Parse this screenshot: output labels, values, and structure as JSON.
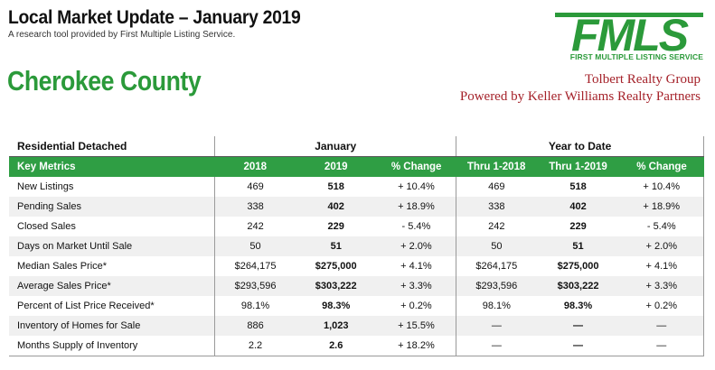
{
  "header": {
    "title": "Local Market Update – January 2019",
    "subtitle": "A research tool provided by First Multiple Listing Service.",
    "county": "Cherokee County"
  },
  "logo": {
    "wordmark": "FMLS",
    "caption": "FIRST MULTIPLE LISTING SERVICE",
    "color": "#2b9a3a"
  },
  "agent": {
    "line1": "Tolbert Realty Group",
    "line2": "Powered by Keller Williams Realty Partners",
    "color": "#a5222a"
  },
  "table": {
    "section_label": "Residential Detached",
    "group_month": "January",
    "group_ytd": "Year to Date",
    "header_color": "#2f9e44",
    "columns": [
      "Key Metrics",
      "2018",
      "2019",
      "% Change",
      "Thru 1-2018",
      "Thru 1-2019",
      "% Change"
    ],
    "rows": [
      {
        "metric": "New Listings",
        "m2018": "469",
        "m2019": "518",
        "mchg": "+ 10.4%",
        "y2018": "469",
        "y2019": "518",
        "ychg": "+ 10.4%"
      },
      {
        "metric": "Pending Sales",
        "m2018": "338",
        "m2019": "402",
        "mchg": "+ 18.9%",
        "y2018": "338",
        "y2019": "402",
        "ychg": "+ 18.9%"
      },
      {
        "metric": "Closed Sales",
        "m2018": "242",
        "m2019": "229",
        "mchg": "- 5.4%",
        "y2018": "242",
        "y2019": "229",
        "ychg": "- 5.4%"
      },
      {
        "metric": "Days on Market Until Sale",
        "m2018": "50",
        "m2019": "51",
        "mchg": "+ 2.0%",
        "y2018": "50",
        "y2019": "51",
        "ychg": "+ 2.0%"
      },
      {
        "metric": "Median Sales Price*",
        "m2018": "$264,175",
        "m2019": "$275,000",
        "mchg": "+ 4.1%",
        "y2018": "$264,175",
        "y2019": "$275,000",
        "ychg": "+ 4.1%"
      },
      {
        "metric": "Average Sales Price*",
        "m2018": "$293,596",
        "m2019": "$303,222",
        "mchg": "+ 3.3%",
        "y2018": "$293,596",
        "y2019": "$303,222",
        "ychg": "+ 3.3%"
      },
      {
        "metric": "Percent of List Price Received*",
        "m2018": "98.1%",
        "m2019": "98.3%",
        "mchg": "+ 0.2%",
        "y2018": "98.1%",
        "y2019": "98.3%",
        "ychg": "+ 0.2%"
      },
      {
        "metric": "Inventory of Homes for Sale",
        "m2018": "886",
        "m2019": "1,023",
        "mchg": "+ 15.5%",
        "y2018": "—",
        "y2019": "—",
        "ychg": "—"
      },
      {
        "metric": "Months Supply of Inventory",
        "m2018": "2.2",
        "m2019": "2.6",
        "mchg": "+ 18.2%",
        "y2018": "—",
        "y2019": "—",
        "ychg": "—"
      }
    ]
  }
}
